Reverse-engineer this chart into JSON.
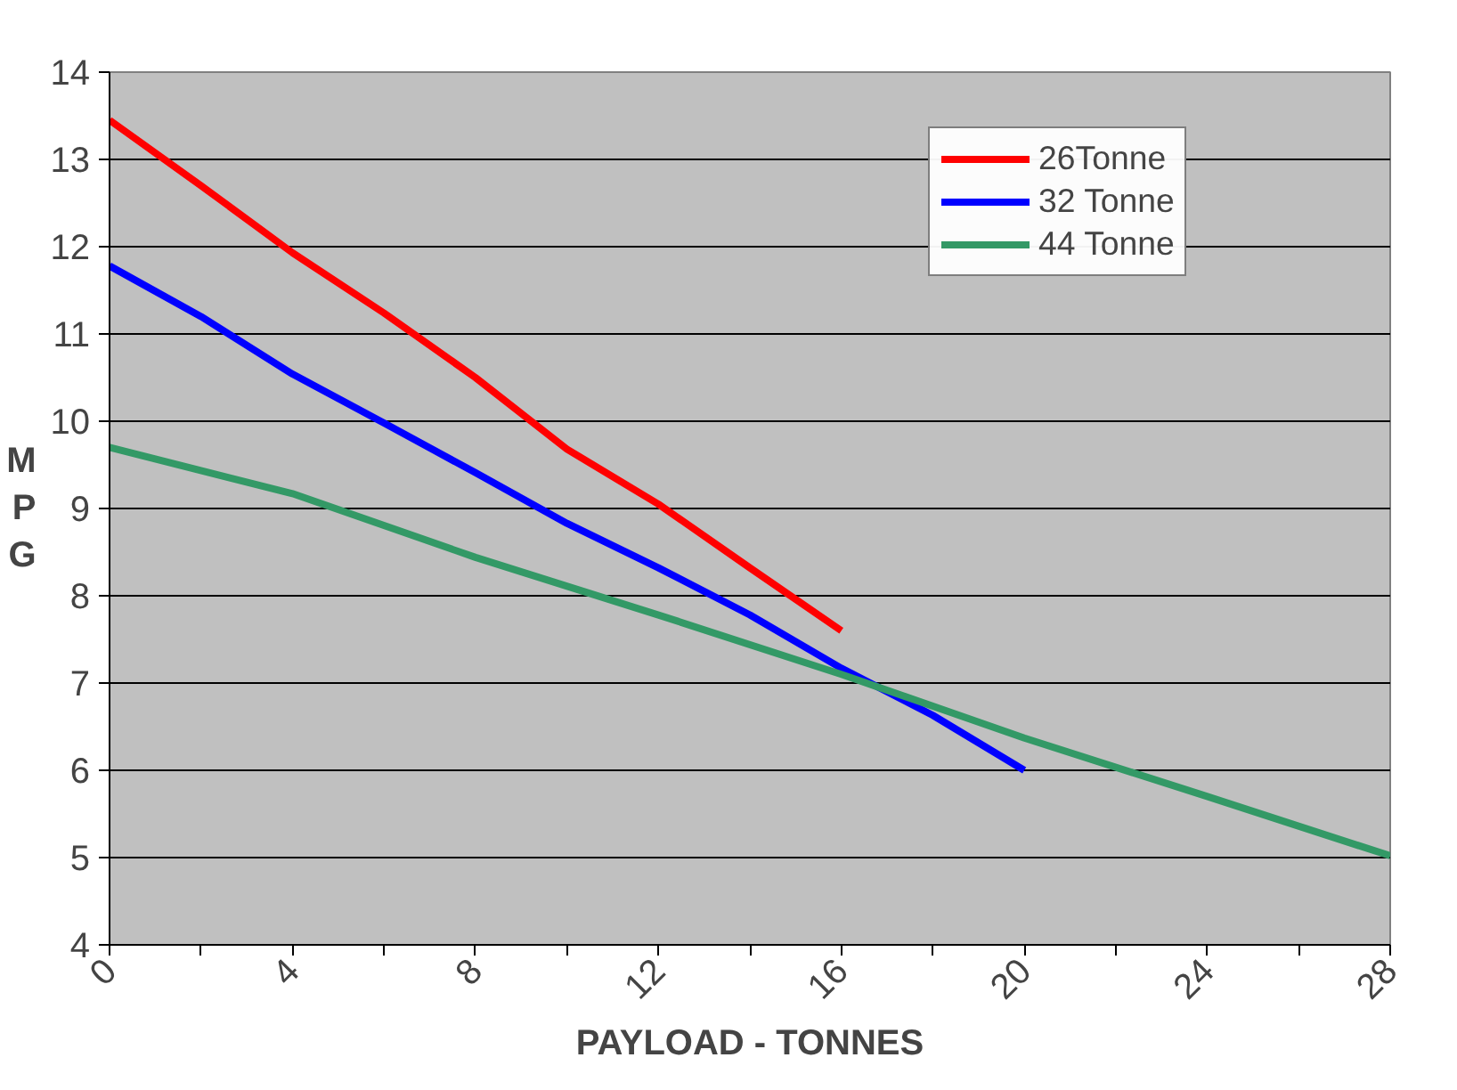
{
  "chart_data": {
    "type": "line",
    "xlabel": "PAYLOAD - TONNES",
    "ylabel": "MPG",
    "xlim": [
      0,
      28
    ],
    "ylim": [
      4,
      14
    ],
    "xticks": [
      0,
      {
        "value": 2,
        "label": null
      },
      4,
      {
        "value": 6,
        "label": null
      },
      8,
      {
        "value": 10,
        "label": null
      },
      12,
      {
        "value": 14,
        "label": null
      },
      16,
      {
        "value": 18,
        "label": null
      },
      20,
      {
        "value": 22,
        "label": null
      },
      24,
      {
        "value": 26,
        "label": null
      },
      28
    ],
    "yticks": [
      4,
      5,
      6,
      7,
      8,
      9,
      10,
      11,
      12,
      13,
      14
    ],
    "grid": "y",
    "legend": "top right",
    "marker": "none",
    "line_style": "solid",
    "series": [
      {
        "name": "26Tonne",
        "color": "#ff0000",
        "x": [
          0,
          2,
          4,
          6,
          8,
          10,
          12,
          14,
          16
        ],
        "values": [
          13.45,
          12.7,
          11.93,
          11.24,
          10.5,
          9.68,
          9.05,
          8.32,
          7.6
        ]
      },
      {
        "name": "32 Tonne",
        "color": "#0000ff",
        "x": [
          0,
          2,
          4,
          6,
          8,
          10,
          12,
          14,
          16,
          18,
          20
        ],
        "values": [
          11.78,
          11.2,
          10.54,
          9.98,
          9.41,
          8.83,
          8.32,
          7.78,
          7.17,
          6.63,
          6.0
        ]
      },
      {
        "name": "44 Tonne",
        "color": "#339966",
        "x": [
          0,
          4,
          8,
          12,
          16,
          20,
          24,
          28
        ],
        "values": [
          9.7,
          9.17,
          8.44,
          7.78,
          7.1,
          6.37,
          5.7,
          5.02
        ]
      }
    ]
  }
}
